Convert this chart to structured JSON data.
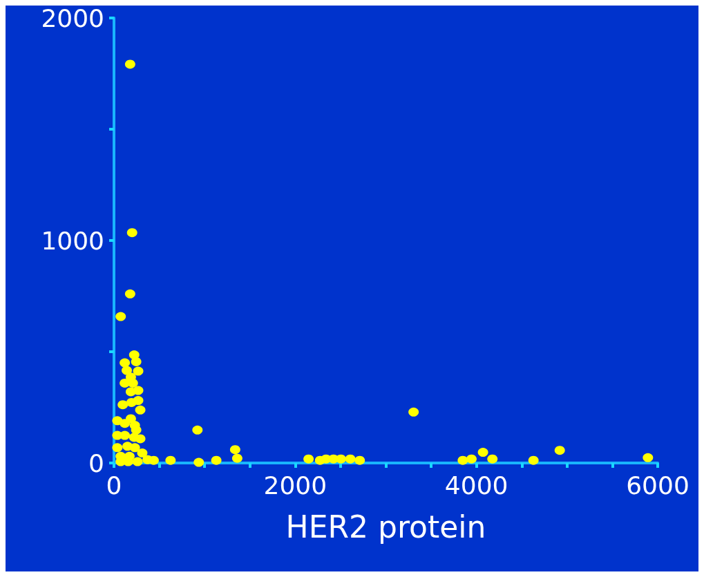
{
  "chart_data": {
    "type": "scatter",
    "xlabel": "HER2 protein",
    "color": "#ffff00",
    "marker": "circle",
    "grid": false,
    "x": [
      178,
      200,
      178,
      74,
      223,
      245,
      119,
      141,
      267,
      186,
      119,
      208,
      186,
      267,
      97,
      193,
      267,
      290,
      37,
      119,
      186,
      230,
      245,
      37,
      119,
      223,
      290,
      37,
      149,
      230,
      312,
      74,
      171,
      74,
      156,
      260,
      371,
      438,
      624,
      921,
      936,
      1129,
      1337,
      1360,
      3306,
      2147,
      2274,
      2340,
      2422,
      2504,
      2608,
      2712,
      3849,
      3945,
      4072,
      4176,
      4629,
      4919,
      5892
    ],
    "values": [
      1792,
      1035,
      760,
      658,
      486,
      455,
      450,
      416,
      413,
      386,
      359,
      359,
      320,
      326,
      262,
      272,
      281,
      238,
      190,
      178,
      199,
      169,
      148,
      124,
      124,
      115,
      109,
      69,
      75,
      69,
      45,
      30,
      30,
      6,
      6,
      6,
      15,
      12,
      12,
      148,
      3,
      12,
      60,
      21,
      229,
      18,
      12,
      18,
      18,
      18,
      18,
      12,
      12,
      18,
      48,
      18,
      12,
      57,
      24
    ],
    "xlim": [
      0,
      6000
    ],
    "xticks": [
      0,
      {
        "value": 500,
        "label": null
      },
      {
        "value": 1000,
        "label": null
      },
      {
        "value": 1500,
        "label": null
      },
      2000,
      {
        "value": 2500,
        "label": null
      },
      {
        "value": 3000,
        "label": null
      },
      {
        "value": 3500,
        "label": null
      },
      4000,
      {
        "value": 4500,
        "label": null
      },
      {
        "value": 5000,
        "label": null
      },
      {
        "value": 5500,
        "label": null
      },
      6000
    ],
    "ylim": [
      0,
      2000
    ],
    "yticks": [
      0,
      {
        "value": 500,
        "label": null
      },
      1000,
      {
        "value": 1500,
        "label": null
      },
      2000
    ]
  }
}
